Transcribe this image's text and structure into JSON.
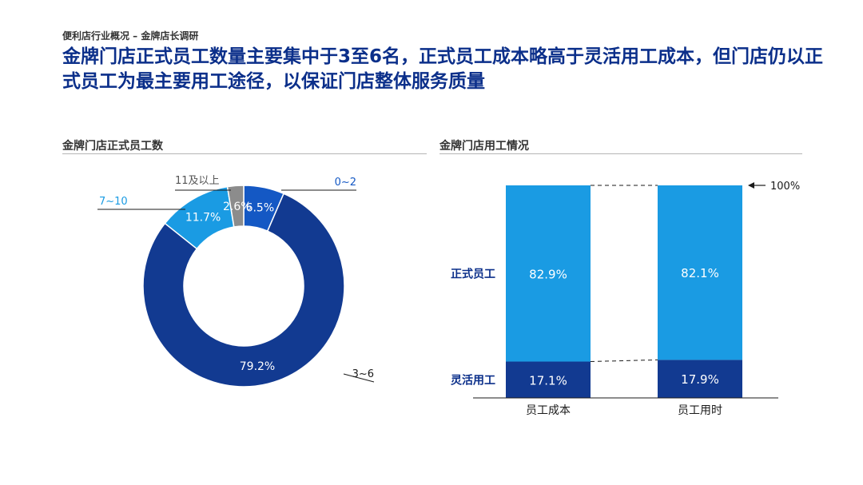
{
  "breadcrumb": "便利店行业概况 – 金牌店长调研",
  "headline": "金牌门店正式员工数量主要集中于3至6名，正式员工成本略高于灵活用工成本，但门店仍以正式员工为最主要用工途径，以保证门店整体服务质量",
  "colors": {
    "dark_blue": "#123a91",
    "light_blue": "#1a9be3",
    "gray": "#8c8c8c",
    "mid_blue": "#1458c4"
  },
  "chart_data": [
    {
      "type": "pie",
      "subtype": "donut",
      "title": "金牌门店正式员工数",
      "slices": [
        {
          "label": "0~2",
          "value": 6.5,
          "display": "6.5%",
          "color": "#1458c4"
        },
        {
          "label": "3~6",
          "value": 79.2,
          "display": "79.2%",
          "color": "#123a91"
        },
        {
          "label": "7~10",
          "value": 11.7,
          "display": "11.7%",
          "color": "#1a9be3"
        },
        {
          "label": "11及以上",
          "value": 2.6,
          "display": "2.6%",
          "color": "#8c8c8c"
        }
      ]
    },
    {
      "type": "bar",
      "subtype": "100% stacked",
      "title": "金牌门店用工情况",
      "categories": [
        "员工成本",
        "员工用时"
      ],
      "series": [
        {
          "name": "灵活用工",
          "values": [
            17.1,
            17.9
          ],
          "display": [
            "17.1%",
            "17.9%"
          ],
          "color": "#123a91"
        },
        {
          "name": "正式员工",
          "values": [
            82.9,
            82.1
          ],
          "display": [
            "82.9%",
            "82.1%"
          ],
          "color": "#1a9be3"
        }
      ],
      "reference_label": "100%",
      "ylim": [
        0,
        100
      ]
    }
  ]
}
